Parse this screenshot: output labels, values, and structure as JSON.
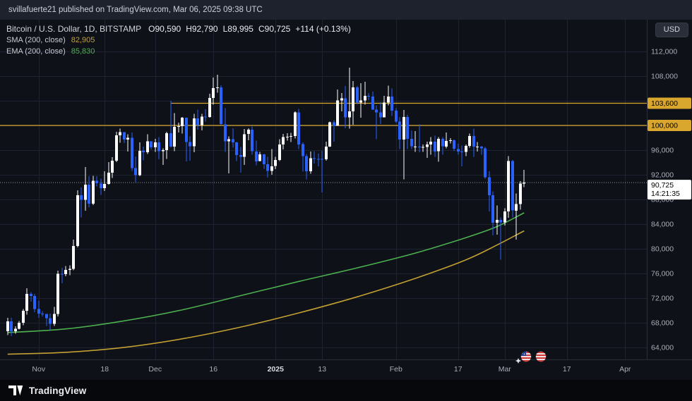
{
  "top_bar": {
    "text": "svillafuerte21 published on TradingView.com, Mar 06, 2025 09:38 UTC"
  },
  "legend": {
    "symbol_title": "Bitcoin / U.S. Dollar, 1D, BITSTAMP",
    "ohlc": {
      "open": "O90,590",
      "high": "H92,790",
      "low": "L89,995",
      "close": "C90,725",
      "change": "+114 (+0.13%)"
    },
    "indicators": [
      {
        "label": "SMA (200, close)",
        "value": "82,905",
        "color": "#c3a032"
      },
      {
        "label": "EMA (200, close)",
        "value": "85,830",
        "color": "#4caf50"
      }
    ]
  },
  "currency_button": {
    "label": "USD"
  },
  "footer": {
    "brand": "TradingView"
  },
  "stickers": [
    {
      "name": "us-flag-ball-emoji",
      "x": 745,
      "y": 478
    },
    {
      "name": "striped-ball-emoji",
      "x": 766,
      "y": 478
    },
    {
      "name": "sparkle-icon",
      "x": 734,
      "y": 484
    }
  ],
  "chart_data": {
    "type": "candlestick",
    "title": "Bitcoin / U.S. Dollar",
    "exchange": "BITSTAMP",
    "interval": "1D",
    "start_date": "2024-10-24",
    "ylim": [
      62050,
      117150
    ],
    "grid": true,
    "colors": {
      "up": "#ffffff",
      "down": "#2962ff",
      "sma": "#c3a032",
      "ema": "#4caf50",
      "level": "#d9a62e",
      "grid": "#1d2330",
      "axis_text": "#a8adb8",
      "axis_text_strong": "#d8dbe2",
      "price_line": "#9598a1",
      "separator": "#2a2e39"
    },
    "price_ticks": [
      112000,
      108000,
      104000,
      100000,
      96000,
      92000,
      88000,
      84000,
      80000,
      76000,
      72000,
      68000,
      64000
    ],
    "time_ticks": [
      {
        "date": "2024-11-01",
        "label": "Nov"
      },
      {
        "date": "2024-11-18",
        "label": "18"
      },
      {
        "date": "2024-12-01",
        "label": "Dec"
      },
      {
        "date": "2024-12-16",
        "label": "16"
      },
      {
        "date": "2025-01-01",
        "label": "2025",
        "strong": true
      },
      {
        "date": "2025-01-13",
        "label": "13"
      },
      {
        "date": "2025-02-01",
        "label": "Feb"
      },
      {
        "date": "2025-02-17",
        "label": "17"
      },
      {
        "date": "2025-03-01",
        "label": "Mar"
      },
      {
        "date": "2025-03-17",
        "label": "17"
      },
      {
        "date": "2025-04-01",
        "label": "Apr"
      }
    ],
    "levels": [
      {
        "price": 103600,
        "label": "103,600",
        "start_date": "2024-12-05"
      },
      {
        "price": 100000,
        "label": "100,000",
        "start_date": null
      }
    ],
    "last_price": {
      "value": 90725,
      "label": "90,725",
      "countdown": "14:21:35"
    },
    "sma": {
      "period": 200,
      "value": 82905,
      "points": [
        [
          0,
          62900
        ],
        [
          15,
          63200
        ],
        [
          30,
          64000
        ],
        [
          45,
          65400
        ],
        [
          60,
          67300
        ],
        [
          75,
          69600
        ],
        [
          90,
          72200
        ],
        [
          105,
          75200
        ],
        [
          118,
          78200
        ],
        [
          126,
          80600
        ],
        [
          133,
          82905
        ]
      ]
    },
    "ema": {
      "period": 200,
      "value": 85830,
      "points": [
        [
          0,
          66400
        ],
        [
          15,
          67000
        ],
        [
          30,
          68300
        ],
        [
          45,
          70100
        ],
        [
          60,
          72400
        ],
        [
          75,
          74700
        ],
        [
          90,
          76900
        ],
        [
          105,
          79300
        ],
        [
          118,
          81800
        ],
        [
          126,
          83600
        ],
        [
          133,
          85830
        ]
      ]
    },
    "candles": [
      [
        66650,
        68800,
        66000,
        68200
      ],
      [
        68200,
        68780,
        65800,
        66600
      ],
      [
        66600,
        67400,
        66200,
        67050
      ],
      [
        67050,
        68300,
        66900,
        68000
      ],
      [
        68000,
        70200,
        67600,
        69950
      ],
      [
        69950,
        73600,
        69300,
        72700
      ],
      [
        72700,
        72950,
        71400,
        72350
      ],
      [
        72350,
        72700,
        69700,
        70200
      ],
      [
        70200,
        71600,
        68800,
        69500
      ],
      [
        69500,
        69900,
        69000,
        69400
      ],
      [
        69400,
        69400,
        67500,
        68750
      ],
      [
        68750,
        69500,
        66800,
        67850
      ],
      [
        67850,
        70550,
        67450,
        69400
      ],
      [
        69400,
        76450,
        69000,
        75950
      ],
      [
        75950,
        76900,
        74400,
        75900
      ],
      [
        75900,
        77200,
        75550,
        76550
      ],
      [
        76550,
        77300,
        75700,
        76750
      ],
      [
        76750,
        81500,
        76500,
        80450
      ],
      [
        80450,
        89500,
        80250,
        88700
      ],
      [
        88700,
        89950,
        85100,
        87950
      ],
      [
        87950,
        93250,
        86150,
        90400
      ],
      [
        90400,
        91750,
        86700,
        87300
      ],
      [
        87300,
        91850,
        87100,
        91050
      ],
      [
        91050,
        91750,
        90100,
        90600
      ],
      [
        90600,
        91400,
        88750,
        89850
      ],
      [
        89850,
        92550,
        89400,
        90500
      ],
      [
        90500,
        94050,
        90400,
        92350
      ],
      [
        92350,
        94850,
        91500,
        94300
      ],
      [
        94300,
        98950,
        94050,
        98400
      ],
      [
        98400,
        99500,
        97200,
        98900
      ],
      [
        98900,
        98900,
        97150,
        97700
      ],
      [
        97700,
        98550,
        95750,
        98000
      ],
      [
        98000,
        98850,
        92650,
        93100
      ],
      [
        93100,
        94950,
        90800,
        91950
      ],
      [
        91950,
        97250,
        91800,
        95900
      ],
      [
        95900,
        96550,
        94350,
        95650
      ],
      [
        95650,
        98600,
        95400,
        97450
      ],
      [
        97450,
        97450,
        96100,
        96450
      ],
      [
        96450,
        97850,
        95700,
        97250
      ],
      [
        97250,
        98100,
        94500,
        95850
      ],
      [
        95850,
        96300,
        93600,
        96000
      ],
      [
        96000,
        99000,
        94600,
        98750
      ],
      [
        98750,
        104000,
        96400,
        96600
      ],
      [
        96600,
        102000,
        95800,
        99800
      ],
      [
        99800,
        100450,
        98850,
        99900
      ],
      [
        99900,
        101350,
        98700,
        101250
      ],
      [
        101250,
        101250,
        94200,
        97300
      ],
      [
        97300,
        98250,
        94300,
        96650
      ],
      [
        96650,
        101900,
        95650,
        101150
      ],
      [
        101150,
        102550,
        99300,
        100050
      ],
      [
        100050,
        101900,
        99200,
        101450
      ],
      [
        101450,
        102650,
        100600,
        101400
      ],
      [
        101400,
        105150,
        101250,
        104450
      ],
      [
        104450,
        107750,
        103350,
        106050
      ],
      [
        106050,
        108250,
        105350,
        106150
      ],
      [
        106150,
        106500,
        100050,
        100200
      ],
      [
        100200,
        102800,
        95700,
        97450
      ],
      [
        97450,
        98250,
        92250,
        97800
      ],
      [
        97800,
        99550,
        96400,
        97250
      ],
      [
        97250,
        97300,
        94250,
        95200
      ],
      [
        95200,
        96500,
        92350,
        94900
      ],
      [
        94900,
        99450,
        93600,
        98600
      ],
      [
        98600,
        99550,
        97600,
        99300
      ],
      [
        99300,
        99850,
        95250,
        95800
      ],
      [
        95800,
        97550,
        93550,
        94200
      ],
      [
        94200,
        95700,
        94150,
        95300
      ],
      [
        95300,
        95350,
        93000,
        93700
      ],
      [
        93700,
        94900,
        91550,
        92650
      ],
      [
        92650,
        96150,
        92000,
        93400
      ],
      [
        93400,
        94900,
        92900,
        94400
      ],
      [
        94400,
        97800,
        94250,
        96900
      ],
      [
        96900,
        98650,
        96100,
        98100
      ],
      [
        98100,
        98750,
        97550,
        98200
      ],
      [
        98200,
        98800,
        97300,
        98300
      ],
      [
        98300,
        102300,
        97900,
        102100
      ],
      [
        102100,
        102700,
        96150,
        96950
      ],
      [
        96950,
        97250,
        92500,
        95050
      ],
      [
        95050,
        95350,
        91250,
        92550
      ],
      [
        92550,
        95800,
        92200,
        94700
      ],
      [
        94700,
        95850,
        93800,
        94600
      ],
      [
        94600,
        95450,
        93350,
        94550
      ],
      [
        94550,
        95900,
        89150,
        94500
      ],
      [
        94500,
        97350,
        94300,
        96550
      ],
      [
        96550,
        100650,
        96500,
        100500
      ],
      [
        100500,
        100850,
        97350,
        99950
      ],
      [
        99950,
        105850,
        99950,
        104050
      ],
      [
        104050,
        105250,
        102300,
        104400
      ],
      [
        104400,
        106400,
        99550,
        101300
      ],
      [
        101300,
        109350,
        99500,
        102300
      ],
      [
        102300,
        107200,
        100100,
        106150
      ],
      [
        106150,
        106400,
        103400,
        103700
      ],
      [
        103700,
        106850,
        101250,
        104050
      ],
      [
        104050,
        107100,
        103350,
        104800
      ],
      [
        104800,
        105250,
        104100,
        104700
      ],
      [
        104700,
        105500,
        102500,
        102600
      ],
      [
        102600,
        103250,
        97750,
        102100
      ],
      [
        102100,
        103800,
        100250,
        101300
      ],
      [
        101300,
        104800,
        101300,
        103700
      ],
      [
        103700,
        106450,
        103250,
        104700
      ],
      [
        104700,
        106000,
        101550,
        102400
      ],
      [
        102400,
        102800,
        100400,
        100650
      ],
      [
        100650,
        101400,
        96150,
        97700
      ],
      [
        97700,
        102500,
        91250,
        101400
      ],
      [
        101400,
        101700,
        96150,
        97850
      ],
      [
        97850,
        99150,
        96150,
        96600
      ],
      [
        96600,
        99100,
        95700,
        96600
      ],
      [
        96600,
        100150,
        95650,
        96500
      ],
      [
        96500,
        96900,
        95700,
        96500
      ],
      [
        96500,
        97350,
        94750,
        96900
      ],
      [
        96900,
        98100,
        95250,
        97400
      ],
      [
        97400,
        98350,
        94900,
        95800
      ],
      [
        95800,
        98100,
        94100,
        97850
      ],
      [
        97850,
        98100,
        95250,
        96600
      ],
      [
        96600,
        98850,
        96300,
        97500
      ],
      [
        97500,
        97950,
        97100,
        97600
      ],
      [
        97600,
        97700,
        95800,
        96200
      ],
      [
        96200,
        97050,
        95250,
        95800
      ],
      [
        95800,
        96750,
        93400,
        95700
      ],
      [
        95700,
        96900,
        95050,
        96700
      ],
      [
        96700,
        98700,
        96400,
        98300
      ],
      [
        98300,
        99475,
        94900,
        96600
      ],
      [
        96600,
        97300,
        95750,
        96600
      ],
      [
        96600,
        96700,
        95250,
        96300
      ],
      [
        96300,
        96500,
        91350,
        91600
      ],
      [
        91600,
        92550,
        86050,
        88700
      ],
      [
        88700,
        89300,
        82150,
        84250
      ],
      [
        84250,
        87050,
        82300,
        84700
      ],
      [
        84700,
        85100,
        78250,
        84300
      ],
      [
        84300,
        86550,
        83800,
        86050
      ],
      [
        86050,
        95050,
        85050,
        94250
      ],
      [
        94250,
        94400,
        85100,
        86200
      ],
      [
        86200,
        88950,
        81500,
        87250
      ],
      [
        87250,
        91000,
        86350,
        90600
      ],
      [
        90590,
        92790,
        89995,
        90725
      ]
    ]
  }
}
